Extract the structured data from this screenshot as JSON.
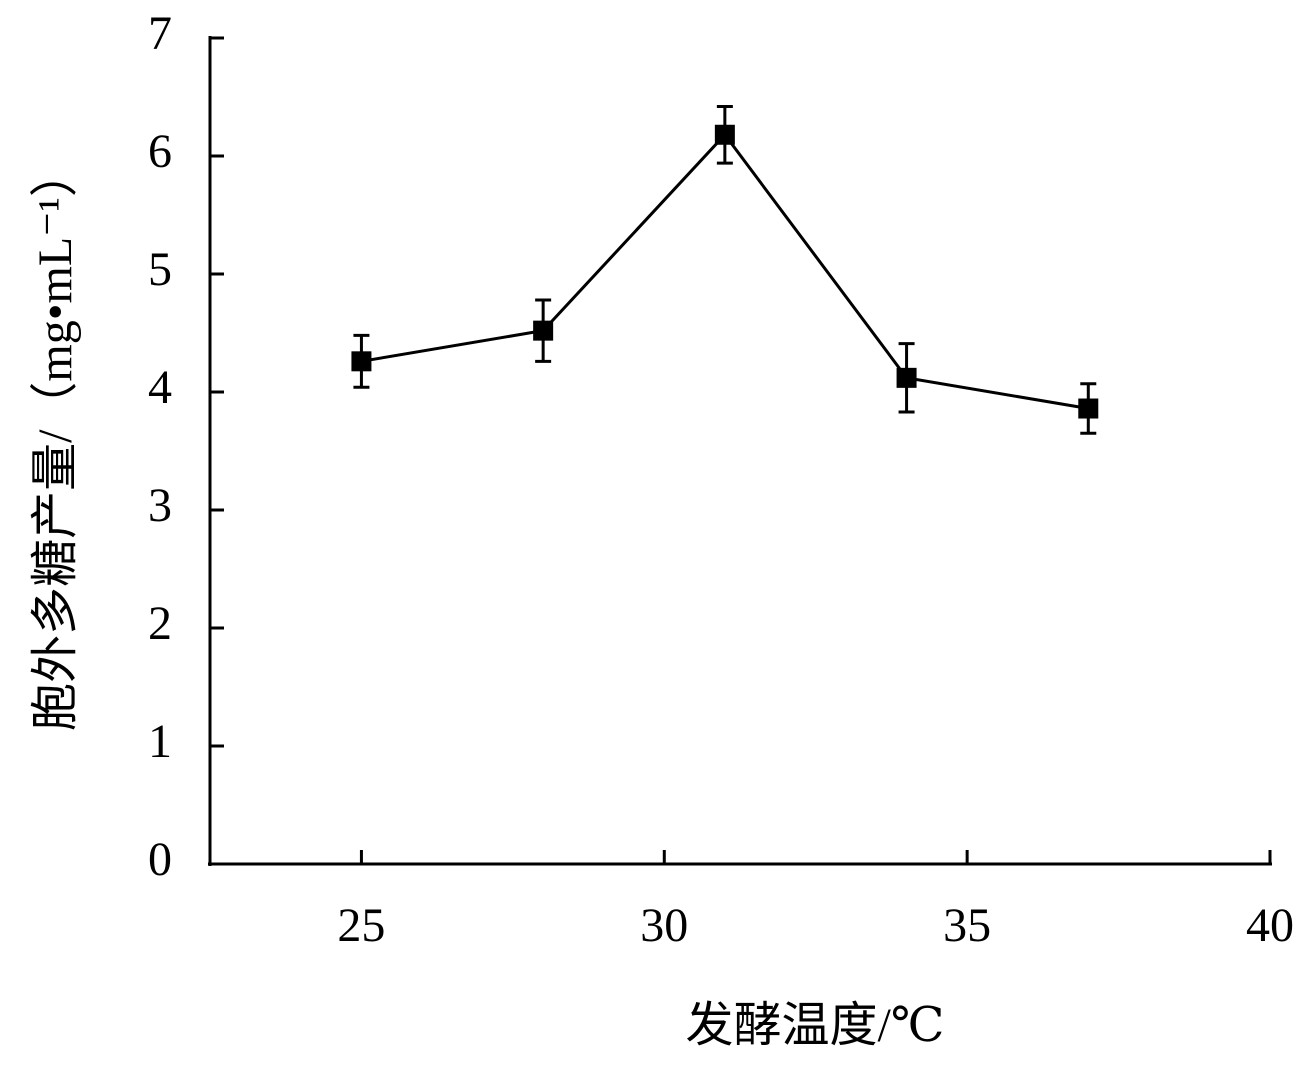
{
  "chart_data": {
    "type": "line",
    "x_label": "发酵温度/℃",
    "y_label": "胞外多糖产量/（mg•mL⁻¹）",
    "x": [
      25,
      28,
      31,
      34,
      37
    ],
    "series": [
      {
        "values": [
          4.26,
          4.52,
          6.18,
          4.12,
          3.86
        ],
        "errors": [
          0.22,
          0.26,
          0.24,
          0.29,
          0.21
        ],
        "color": "#000000"
      }
    ],
    "xlim": [
      22.5,
      40
    ],
    "xticks": [
      25,
      30,
      35,
      40
    ],
    "ylim": [
      0,
      7
    ],
    "yticks": [
      0,
      1,
      2,
      3,
      4,
      5,
      6,
      7
    ],
    "grid": false
  }
}
